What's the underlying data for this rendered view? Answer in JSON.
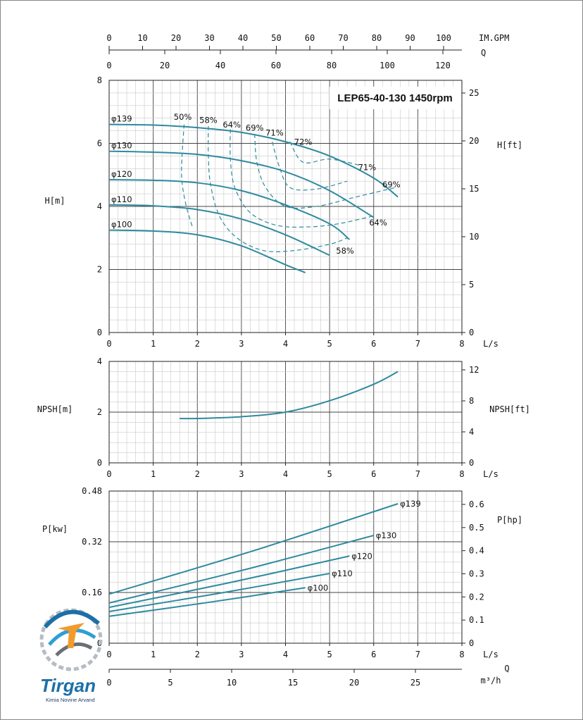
{
  "chart_data": [
    {
      "type": "line",
      "title": "LEP65-40-130 1450rpm",
      "xlabel": "L/s",
      "ylabel": "H[m]",
      "ylabel_right": "H[ft]",
      "top_axis_1": {
        "label": "IM.GPM",
        "ticks": [
          "0",
          "10",
          "20",
          "30",
          "40",
          "50",
          "60",
          "70",
          "80",
          "90",
          "100"
        ]
      },
      "top_axis_2": {
        "label": "Q",
        "ticks": [
          "0",
          "20",
          "40",
          "60",
          "80",
          "100",
          "120"
        ]
      },
      "xlim": [
        0,
        8
      ],
      "ylim": [
        0,
        8
      ],
      "xticks": [
        "0",
        "1",
        "2",
        "3",
        "4",
        "5",
        "6",
        "7",
        "8"
      ],
      "yticks": [
        "0",
        "2",
        "4",
        "6",
        "8"
      ],
      "yticks_right": [
        "0",
        "5",
        "10",
        "15",
        "20",
        "25"
      ],
      "series": [
        {
          "name": "φ139",
          "x": [
            0,
            1,
            2,
            3,
            4,
            5,
            6,
            6.55
          ],
          "y": [
            6.6,
            6.58,
            6.5,
            6.35,
            6.05,
            5.6,
            4.9,
            4.3
          ]
        },
        {
          "name": "φ130",
          "x": [
            0,
            1,
            2,
            3,
            4,
            5,
            6
          ],
          "y": [
            5.75,
            5.72,
            5.65,
            5.45,
            5.1,
            4.5,
            3.65
          ]
        },
        {
          "name": "φ120",
          "x": [
            0,
            1,
            2,
            3,
            4,
            5,
            5.45
          ],
          "y": [
            4.85,
            4.83,
            4.75,
            4.5,
            4.05,
            3.45,
            2.95
          ]
        },
        {
          "name": "φ110",
          "x": [
            0,
            1,
            2,
            3,
            4,
            5
          ],
          "y": [
            4.05,
            4.02,
            3.9,
            3.6,
            3.1,
            2.45
          ]
        },
        {
          "name": "φ100",
          "x": [
            0,
            1,
            2,
            3,
            4,
            4.45
          ],
          "y": [
            3.25,
            3.22,
            3.1,
            2.75,
            2.15,
            1.9
          ]
        }
      ],
      "efficiency_labels": [
        "50%",
        "58%",
        "64%",
        "69%",
        "71%",
        "72%",
        "71%",
        "69%",
        "64%",
        "58%"
      ]
    },
    {
      "type": "line",
      "xlabel": "L/s",
      "ylabel": "NPSH[m]",
      "ylabel_right": "NPSH[ft]",
      "xlim": [
        0,
        8
      ],
      "ylim": [
        0,
        4
      ],
      "xticks": [
        "0",
        "1",
        "2",
        "3",
        "4",
        "5",
        "6",
        "7",
        "8"
      ],
      "yticks": [
        "0",
        "2",
        "4"
      ],
      "yticks_right": [
        "0",
        "4",
        "8",
        "12"
      ],
      "series": [
        {
          "x": [
            1.6,
            2,
            3,
            4,
            5,
            6,
            6.55
          ],
          "y": [
            1.75,
            1.75,
            1.82,
            2.0,
            2.45,
            3.1,
            3.6
          ]
        }
      ]
    },
    {
      "type": "line",
      "xlabel": "L/s",
      "xlabel2": "Q",
      "xlabel3": "m³/h",
      "ylabel": "P[kw]",
      "ylabel_right": "P[hp]",
      "xlim": [
        0,
        8
      ],
      "ylim": [
        0,
        0.48
      ],
      "xticks": [
        "0",
        "1",
        "2",
        "3",
        "4",
        "5",
        "6",
        "7",
        "8"
      ],
      "xticks_m3h": [
        "0",
        "5",
        "10",
        "15",
        "20",
        "25"
      ],
      "yticks": [
        "0",
        "0.16",
        "0.32",
        "0.48"
      ],
      "yticks_right": [
        "0",
        "0.1",
        "0.2",
        "0.3",
        "0.4",
        "0.5",
        "0.6"
      ],
      "series": [
        {
          "name": "φ139",
          "x": [
            0,
            6.55
          ],
          "y": [
            0.155,
            0.44
          ]
        },
        {
          "name": "φ130",
          "x": [
            0,
            6.0
          ],
          "y": [
            0.127,
            0.34
          ]
        },
        {
          "name": "φ120",
          "x": [
            0,
            5.45
          ],
          "y": [
            0.113,
            0.275
          ]
        },
        {
          "name": "φ110",
          "x": [
            0,
            5.0
          ],
          "y": [
            0.1,
            0.22
          ]
        },
        {
          "name": "φ100",
          "x": [
            0,
            4.45
          ],
          "y": [
            0.085,
            0.175
          ]
        }
      ]
    }
  ],
  "logo": {
    "name": "Tirgan",
    "tagline": "Kimia Novine Arvand"
  }
}
